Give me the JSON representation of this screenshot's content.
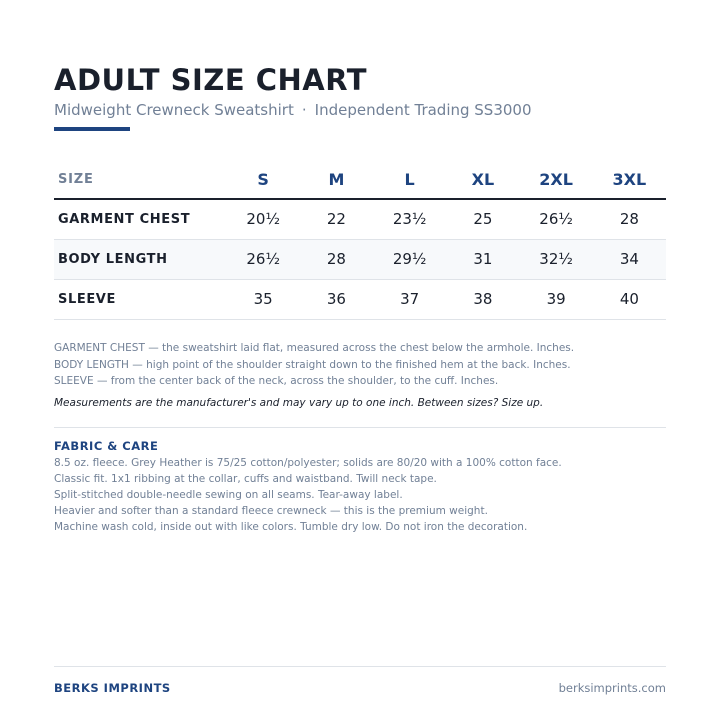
{
  "header": {
    "title": "ADULT SIZE CHART",
    "product": "Midweight Crewneck Sweatshirt",
    "separator": "·",
    "style": "Independent Trading SS3000"
  },
  "size_table": {
    "label_header": "SIZE",
    "sizes": [
      "S",
      "M",
      "L",
      "XL",
      "2XL",
      "3XL"
    ],
    "rows": [
      {
        "label": "GARMENT CHEST",
        "values": [
          "20½",
          "22",
          "23½",
          "25",
          "26½",
          "28"
        ]
      },
      {
        "label": "BODY LENGTH",
        "values": [
          "26½",
          "28",
          "29½",
          "31",
          "32½",
          "34"
        ]
      },
      {
        "label": "SLEEVE",
        "values": [
          "35",
          "36",
          "37",
          "38",
          "39",
          "40"
        ]
      }
    ]
  },
  "notes": [
    "GARMENT CHEST — the sweatshirt laid flat, measured across the chest below the armhole. Inches.",
    "BODY LENGTH — high point of the shoulder straight down to the finished hem at the back. Inches.",
    "SLEEVE — from the center back of the neck, across the shoulder, to the cuff. Inches."
  ],
  "disclaimer": "Measurements are the manufacturer's and may vary up to one inch. Between sizes? Size up.",
  "fabric_care": {
    "heading": "FABRIC & CARE",
    "lines": [
      "8.5 oz. fleece. Grey Heather is 75/25 cotton/polyester; solids are 80/20 with a 100% cotton face.",
      "Classic fit. 1x1 ribbing at the collar, cuffs and waistband. Twill neck tape.",
      "Split-stitched double-needle sewing on all seams. Tear-away label.",
      "Heavier and softer than a standard fleece crewneck — this is the premium weight.",
      "Machine wash cold, inside out with like colors. Tumble dry low. Do not iron the decoration."
    ]
  },
  "footer": {
    "brand": "BERKS IMPRINTS",
    "url": "berksimprints.com"
  },
  "colors": {
    "accent": "#1e4480",
    "text": "#1a202c",
    "muted": "#718096",
    "rule": "#dfe3e8"
  }
}
